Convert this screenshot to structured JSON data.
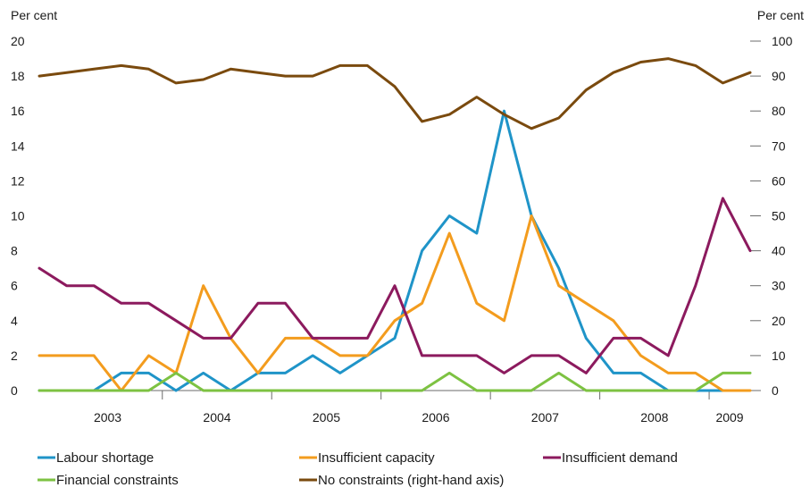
{
  "chart_data": {
    "type": "line",
    "left_axis_label": "Per cent",
    "right_axis_label": "Per cent",
    "left_ylim": [
      0,
      20
    ],
    "left_ticks": [
      "0",
      "2",
      "4",
      "6",
      "8",
      "10",
      "12",
      "14",
      "16",
      "18",
      "20"
    ],
    "right_ylim": [
      0,
      100
    ],
    "right_ticks": [
      "0",
      "10",
      "20",
      "30",
      "40",
      "50",
      "60",
      "70",
      "80",
      "90",
      "100"
    ],
    "year_labels": [
      "2003",
      "2004",
      "2005",
      "2006",
      "2007",
      "2008",
      "2009"
    ],
    "grid": false,
    "legend_position": "bottom",
    "periods": [
      "2002 Q4",
      "2003 Q1",
      "2003 Q2",
      "2003 Q3",
      "2003 Q4",
      "2004 Q1",
      "2004 Q2",
      "2004 Q3",
      "2004 Q4",
      "2005 Q1",
      "2005 Q2",
      "2005 Q3",
      "2005 Q4",
      "2006 Q1",
      "2006 Q2",
      "2006 Q3",
      "2006 Q4",
      "2007 Q1",
      "2007 Q2",
      "2007 Q3",
      "2007 Q4",
      "2008 Q1",
      "2008 Q2",
      "2008 Q3",
      "2008 Q4",
      "2009 Q1",
      "2009 Q2"
    ],
    "series": [
      {
        "name": "Labour shortage",
        "axis": "left",
        "color": "#1f94c8",
        "values": [
          0,
          0,
          0,
          1,
          1,
          0,
          1,
          0,
          1,
          1,
          2,
          1,
          2,
          3,
          8,
          10,
          9,
          16,
          10,
          7,
          3,
          1,
          1,
          0,
          0,
          0,
          null
        ]
      },
      {
        "name": "Insufficient capacity",
        "axis": "left",
        "color": "#f39c1e",
        "values": [
          2,
          2,
          2,
          0,
          2,
          1,
          6,
          3,
          1,
          3,
          3,
          2,
          2,
          4,
          5,
          9,
          5,
          4,
          10,
          6,
          5,
          4,
          2,
          1,
          1,
          0,
          0
        ]
      },
      {
        "name": "Insufficient demand",
        "axis": "left",
        "color": "#8c1a5e",
        "values": [
          7,
          6,
          6,
          5,
          5,
          4,
          3,
          3,
          5,
          5,
          3,
          3,
          3,
          6,
          2,
          2,
          2,
          1,
          2,
          2,
          1,
          3,
          3,
          2,
          6,
          11,
          8
        ]
      },
      {
        "name": "Financial constraints",
        "axis": "left",
        "color": "#7dc242",
        "values": [
          0,
          0,
          0,
          0,
          0,
          1,
          0,
          0,
          0,
          0,
          0,
          0,
          0,
          0,
          0,
          1,
          0,
          0,
          0,
          1,
          0,
          0,
          0,
          0,
          0,
          1,
          1
        ]
      },
      {
        "name": "No constraints (right-hand axis)",
        "axis": "right",
        "color": "#7a4a0e",
        "values": [
          90,
          91,
          92,
          93,
          92,
          88,
          89,
          92,
          91,
          90,
          90,
          93,
          93,
          87,
          77,
          79,
          84,
          79,
          75,
          78,
          86,
          91,
          94,
          95,
          93,
          88,
          91
        ]
      }
    ]
  }
}
